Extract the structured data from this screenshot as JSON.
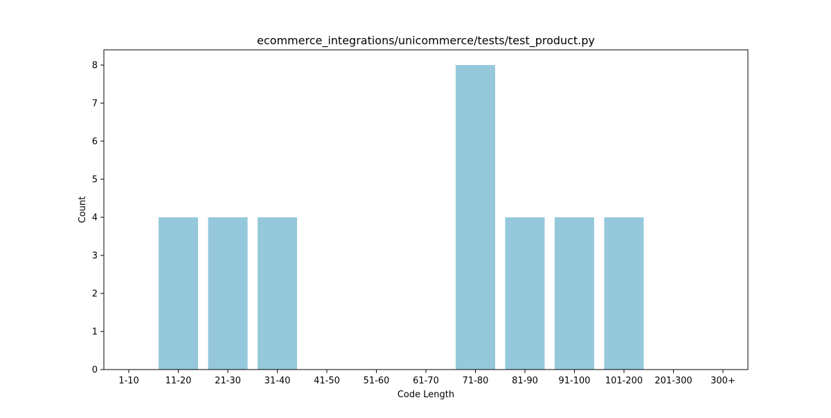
{
  "chart_data": {
    "type": "bar",
    "title": "ecommerce_integrations/unicommerce/tests/test_product.py",
    "xlabel": "Code Length",
    "ylabel": "Count",
    "categories": [
      "1-10",
      "11-20",
      "21-30",
      "31-40",
      "41-50",
      "51-60",
      "61-70",
      "71-80",
      "81-90",
      "91-100",
      "101-200",
      "201-300",
      "300+"
    ],
    "values": [
      0,
      4,
      4,
      4,
      0,
      0,
      0,
      8,
      4,
      4,
      4,
      0,
      0
    ],
    "ylim": [
      0,
      8.4
    ],
    "yticks": [
      0,
      1,
      2,
      3,
      4,
      5,
      6,
      7,
      8
    ],
    "bar_color": "#96c8dc",
    "grid": false,
    "legend": null
  }
}
